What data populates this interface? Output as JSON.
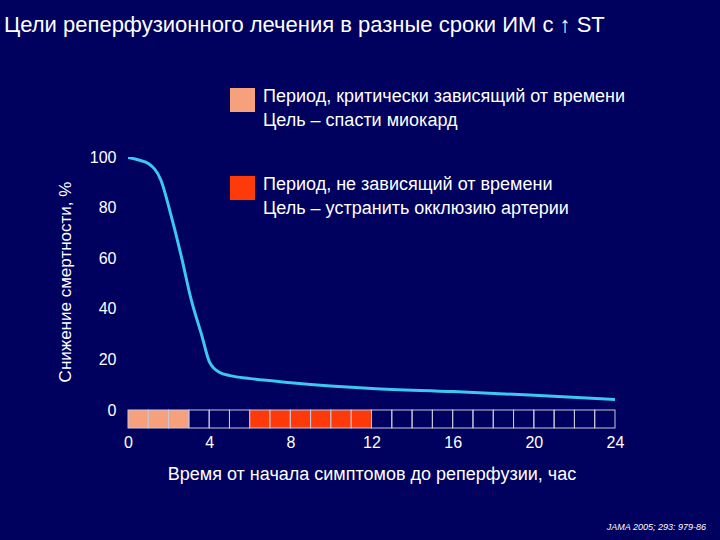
{
  "chart_data": {
    "type": "line",
    "title": "Цели реперфузионного лечения в разные сроки ИМ с ↑ ST",
    "x_label": "Время от начала симптомов до реперфузии, час",
    "y_label": "Снижение смертности, %",
    "source": "JAMA 2005; 293: 979-86",
    "x": [
      0,
      0.5,
      1,
      1.6,
      2.1,
      2.6,
      3.1,
      3.6,
      4,
      4.5,
      5,
      6,
      8,
      12,
      16,
      20,
      24
    ],
    "values": [
      100,
      99,
      97.5,
      91,
      77,
      61,
      43.5,
      30,
      19,
      15,
      13.8,
      12.6,
      11,
      8.7,
      7.5,
      6,
      4.3
    ],
    "color": "#3cc8f0",
    "line_style": "solid",
    "xlim": [
      0,
      24
    ],
    "xticks": [
      0,
      4,
      8,
      12,
      16,
      20,
      24
    ],
    "ylim": [
      0,
      100
    ],
    "yticks": [
      0,
      20,
      40,
      60,
      80,
      100
    ],
    "periods": [
      {
        "name": "Период, критически зависящий от времени",
        "goal": "Цель – спасти миокард",
        "start": 0,
        "end": 3,
        "color": "#f7a07c"
      },
      {
        "name": "Период, не зависящий от времени",
        "goal": "Цель – устранить окклюзию артерии",
        "start": 6,
        "end": 12,
        "color": "#ff3a0a"
      }
    ]
  }
}
